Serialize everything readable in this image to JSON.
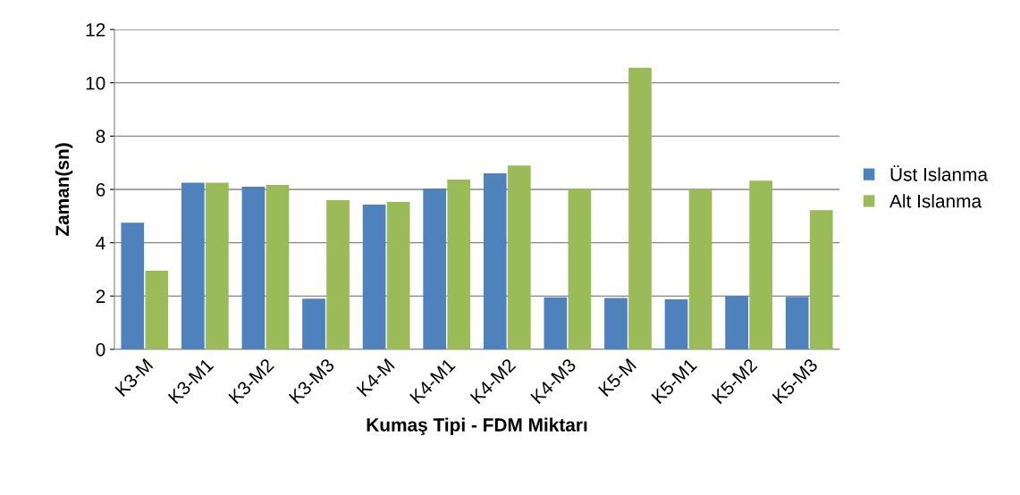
{
  "chart_data": {
    "type": "bar",
    "xlabel": "Kumaş Tipi - FDM Miktarı",
    "ylabel": "Zaman(sn)",
    "categories": [
      "K3-M",
      "K3-M1",
      "K3-M2",
      "K3-M3",
      "K4-M",
      "K4-M1",
      "K4-M2",
      "K4-M3",
      "K5-M",
      "K5-M1",
      "K5-M2",
      "K5-M3"
    ],
    "series": [
      {
        "name": "Üst Islanma",
        "color": "#4f81bd",
        "values": [
          4.75,
          6.25,
          6.1,
          1.9,
          5.43,
          6.03,
          6.6,
          1.95,
          1.93,
          1.88,
          2.0,
          1.97
        ]
      },
      {
        "name": "Alt Islanma",
        "color": "#9bbb59",
        "values": [
          2.95,
          6.25,
          6.17,
          5.6,
          5.53,
          6.37,
          6.9,
          6.03,
          10.57,
          6.0,
          6.33,
          5.22
        ]
      }
    ],
    "ylim": [
      0,
      12
    ],
    "yticks": [
      0,
      2,
      4,
      6,
      8,
      10,
      12
    ],
    "grid": "y",
    "legend": "right"
  }
}
